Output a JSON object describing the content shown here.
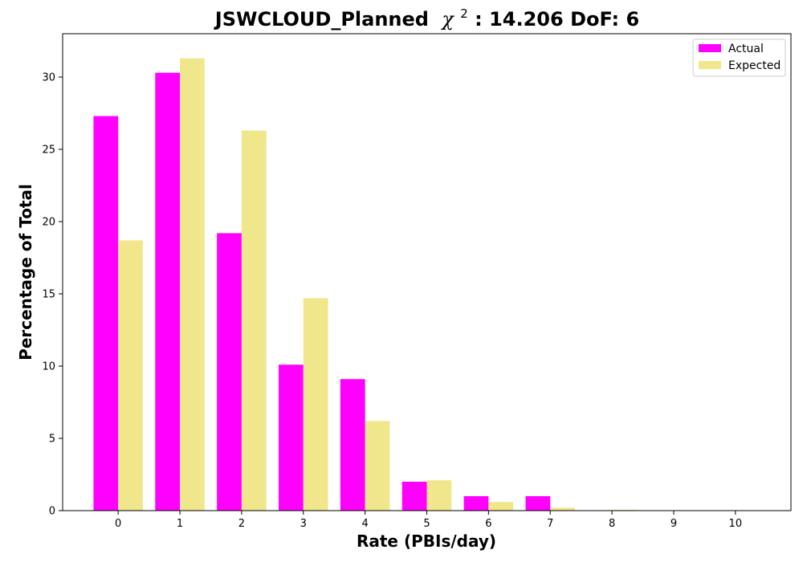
{
  "chart_data": {
    "type": "bar",
    "title": "JSWCLOUD_Planned",
    "title_chi": "χ",
    "title_chi_sup": "2",
    "title_suffix": ": 14.206 DoF: 6",
    "xlabel": "Rate (PBIs/day)",
    "ylabel": "Percentage of Total",
    "categories": [
      "0",
      "1",
      "2",
      "3",
      "4",
      "5",
      "6",
      "7",
      "8",
      "9",
      "10"
    ],
    "series": [
      {
        "name": "Actual",
        "color": "#ff00ff",
        "values": [
          27.3,
          30.3,
          19.2,
          10.1,
          9.1,
          2.0,
          1.0,
          1.0,
          0.0,
          0.0,
          0.0
        ]
      },
      {
        "name": "Expected",
        "color": "#f0e68c",
        "values": [
          18.7,
          31.3,
          26.3,
          14.7,
          6.2,
          2.1,
          0.6,
          0.2,
          0.05,
          0.0,
          0.0
        ]
      }
    ],
    "y_ticks": [
      0,
      5,
      10,
      15,
      20,
      25,
      30
    ],
    "ylim": [
      0,
      33
    ],
    "xlim": [
      -0.9,
      10.9
    ],
    "legend_position": "top-right",
    "grid": false
  }
}
